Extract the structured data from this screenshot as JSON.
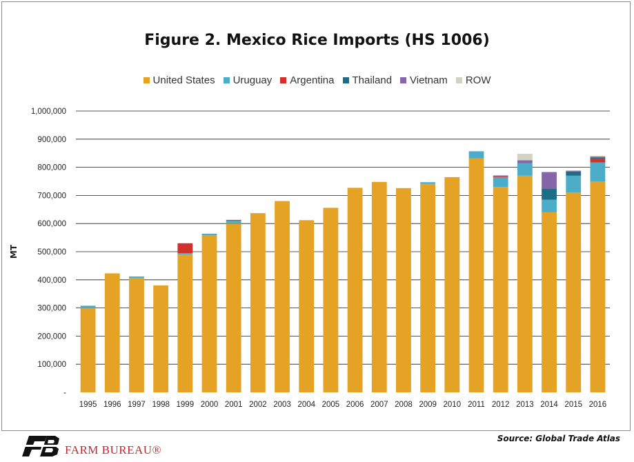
{
  "chart_data": {
    "type": "bar",
    "stacked": true,
    "title": "Figure 2. Mexico Rice Imports (HS 1006)",
    "ylabel": "MT",
    "ylim": [
      0,
      1000000
    ],
    "yticks": [
      0,
      100000,
      200000,
      300000,
      400000,
      500000,
      600000,
      700000,
      800000,
      900000,
      1000000
    ],
    "ytick_labels": [
      "-",
      "100,000",
      "200,000",
      "300,000",
      "400,000",
      "500,000",
      "600,000",
      "700,000",
      "800,000",
      "900,000",
      "1,000,000"
    ],
    "grid": true,
    "legend_position": "top-center",
    "categories": [
      "1995",
      "1996",
      "1997",
      "1998",
      "1999",
      "2000",
      "2001",
      "2002",
      "2003",
      "2004",
      "2005",
      "2006",
      "2007",
      "2008",
      "2009",
      "2010",
      "2011",
      "2012",
      "2013",
      "2014",
      "2015",
      "2016"
    ],
    "series": [
      {
        "name": "United States",
        "color": "#e4a324",
        "values": [
          300000,
          423000,
          407000,
          380000,
          490000,
          558000,
          600000,
          637000,
          680000,
          612000,
          656000,
          727000,
          748000,
          726000,
          741000,
          765000,
          832000,
          730000,
          770000,
          640000,
          710000,
          750000
        ]
      },
      {
        "name": "Uruguay",
        "color": "#4cadc9",
        "values": [
          8000,
          0,
          5000,
          0,
          5000,
          6000,
          10000,
          0,
          0,
          0,
          0,
          0,
          0,
          0,
          6000,
          0,
          25000,
          35000,
          45000,
          45000,
          60000,
          67000
        ]
      },
      {
        "name": "Argentina",
        "color": "#d0312d",
        "values": [
          0,
          0,
          0,
          0,
          35000,
          0,
          3000,
          0,
          0,
          0,
          0,
          0,
          0,
          0,
          0,
          0,
          0,
          3000,
          0,
          0,
          0,
          13000
        ]
      },
      {
        "name": "Thailand",
        "color": "#1c6d86",
        "values": [
          0,
          0,
          0,
          0,
          0,
          0,
          0,
          0,
          0,
          0,
          0,
          0,
          0,
          0,
          0,
          0,
          0,
          0,
          0,
          38000,
          15000,
          5000
        ]
      },
      {
        "name": "Vietnam",
        "color": "#8666a8",
        "values": [
          0,
          0,
          0,
          0,
          0,
          0,
          0,
          0,
          0,
          0,
          0,
          0,
          0,
          0,
          0,
          0,
          0,
          3000,
          10000,
          60000,
          3000,
          3000
        ]
      },
      {
        "name": "ROW",
        "color": "#d2d3c1",
        "values": [
          0,
          0,
          0,
          0,
          0,
          0,
          0,
          0,
          0,
          0,
          0,
          0,
          0,
          0,
          0,
          0,
          0,
          0,
          23000,
          0,
          0,
          3000
        ]
      }
    ]
  },
  "source": "Source: Global Trade Atlas",
  "logo": {
    "text": "FARM BUREAU®",
    "color": "#c1272d"
  }
}
